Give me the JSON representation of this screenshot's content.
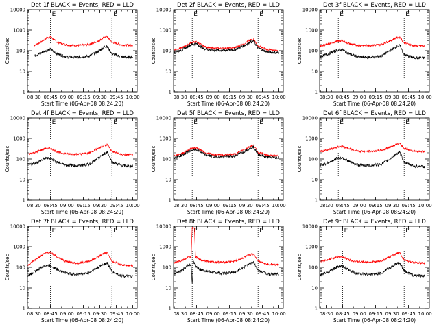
{
  "figure": {
    "xlabel": "Start Time (06-Apr-08 08:24:20)",
    "ylabel": "Counts/sec",
    "xtick_labels": [
      "08:30",
      "08:45",
      "09:00",
      "09:15",
      "09:30",
      "09:45",
      "10:00"
    ],
    "ytick_labels": [
      "1",
      "10",
      "100",
      "1000",
      "10000"
    ],
    "markers": [
      "E",
      "E"
    ],
    "colors": {
      "events": "#000000",
      "lld": "#ff0000",
      "axes": "#000000"
    }
  },
  "chart_data": [
    {
      "type": "line",
      "title": "Det 1f BLACK = Events, RED = LLD",
      "x": [
        "08:30",
        "08:36",
        "08:42",
        "08:45",
        "08:51",
        "09:00",
        "09:10",
        "09:20",
        "09:28",
        "09:34",
        "09:36",
        "09:41",
        "09:50",
        "10:00"
      ],
      "series": [
        {
          "color": "#ff0000",
          "values": [
            180,
            260,
            420,
            460,
            260,
            190,
            180,
            200,
            280,
            440,
            520,
            260,
            190,
            185
          ]
        },
        {
          "color": "#000000",
          "values": [
            55,
            75,
            110,
            115,
            70,
            50,
            48,
            55,
            90,
            150,
            180,
            70,
            50,
            48
          ]
        }
      ],
      "ylim": [
        1,
        10000
      ],
      "yscale": "log",
      "vlines": [
        "08:45",
        "09:41"
      ]
    },
    {
      "type": "line",
      "title": "Det 2f BLACK = Events, RED = LLD",
      "x": [
        "08:24",
        "08:32",
        "08:40",
        "08:45",
        "08:52",
        "09:00",
        "09:10",
        "09:20",
        "09:28",
        "09:34",
        "09:37",
        "09:41",
        "09:50",
        "10:00"
      ],
      "series": [
        {
          "color": "#ff0000",
          "values": [
            110,
            140,
            250,
            270,
            160,
            130,
            130,
            140,
            220,
            330,
            360,
            170,
            110,
            100
          ]
        },
        {
          "color": "#000000",
          "values": [
            85,
            110,
            200,
            215,
            125,
            105,
            105,
            115,
            175,
            270,
            290,
            135,
            85,
            80
          ]
        }
      ],
      "ylim": [
        1,
        10000
      ],
      "yscale": "log",
      "vlines": [
        "08:41",
        "09:41"
      ]
    },
    {
      "type": "line",
      "title": "Det 3f BLACK = Events, RED = LLD",
      "x": [
        "08:24",
        "08:32",
        "08:40",
        "08:45",
        "08:52",
        "09:00",
        "09:10",
        "09:20",
        "09:28",
        "09:34",
        "09:37",
        "09:41",
        "09:50",
        "10:00"
      ],
      "series": [
        {
          "color": "#ff0000",
          "values": [
            170,
            210,
            290,
            300,
            210,
            180,
            180,
            200,
            300,
            420,
            450,
            240,
            175,
            170
          ]
        },
        {
          "color": "#000000",
          "values": [
            50,
            70,
            105,
            110,
            65,
            50,
            48,
            55,
            100,
            160,
            180,
            65,
            45,
            45
          ]
        }
      ],
      "ylim": [
        1,
        10000
      ],
      "yscale": "log",
      "vlines": [
        "08:41",
        "09:41"
      ]
    },
    {
      "type": "line",
      "title": "Det 4f BLACK = Events, RED = LLD",
      "x": [
        "08:24",
        "08:32",
        "08:40",
        "08:45",
        "08:52",
        "09:00",
        "09:10",
        "09:20",
        "09:28",
        "09:34",
        "09:37",
        "09:41",
        "09:50",
        "10:00"
      ],
      "series": [
        {
          "color": "#ff0000",
          "values": [
            170,
            220,
            320,
            330,
            210,
            180,
            170,
            195,
            320,
            450,
            500,
            230,
            165,
            160
          ]
        },
        {
          "color": "#000000",
          "values": [
            50,
            65,
            105,
            110,
            65,
            50,
            48,
            55,
            100,
            180,
            220,
            70,
            48,
            45
          ]
        }
      ],
      "ylim": [
        1,
        10000
      ],
      "yscale": "log",
      "vlines": [
        "08:45",
        "09:41"
      ]
    },
    {
      "type": "line",
      "title": "Det 5f BLACK = Events, RED = LLD",
      "x": [
        "08:24",
        "08:32",
        "08:40",
        "08:45",
        "08:52",
        "09:00",
        "09:10",
        "09:20",
        "09:28",
        "09:34",
        "09:37",
        "09:41",
        "09:50",
        "10:00"
      ],
      "series": [
        {
          "color": "#ff0000",
          "values": [
            140,
            190,
            330,
            350,
            210,
            160,
            155,
            170,
            280,
            420,
            460,
            210,
            150,
            140
          ]
        },
        {
          "color": "#000000",
          "values": [
            115,
            155,
            270,
            285,
            170,
            130,
            128,
            140,
            230,
            350,
            380,
            170,
            120,
            115
          ]
        }
      ],
      "ylim": [
        1,
        10000
      ],
      "yscale": "log",
      "vlines": [
        "08:41",
        "09:41"
      ]
    },
    {
      "type": "line",
      "title": "Det 6f BLACK = Events, RED = LLD",
      "x": [
        "08:24",
        "08:32",
        "08:40",
        "08:45",
        "08:52",
        "09:00",
        "09:10",
        "09:20",
        "09:28",
        "09:34",
        "09:37",
        "09:41",
        "09:50",
        "10:00"
      ],
      "series": [
        {
          "color": "#ff0000",
          "values": [
            230,
            280,
            380,
            400,
            300,
            240,
            235,
            260,
            380,
            520,
            560,
            330,
            240,
            230
          ]
        },
        {
          "color": "#000000",
          "values": [
            48,
            65,
            110,
            115,
            70,
            50,
            48,
            55,
            100,
            175,
            210,
            70,
            45,
            42
          ]
        }
      ],
      "ylim": [
        1,
        10000
      ],
      "yscale": "log",
      "vlines": [
        "08:41",
        "09:41"
      ]
    },
    {
      "type": "line",
      "title": "Det 7f BLACK = Events, RED = LLD",
      "x": [
        "08:24",
        "08:32",
        "08:40",
        "08:45",
        "08:52",
        "09:00",
        "09:10",
        "09:20",
        "09:28",
        "09:34",
        "09:37",
        "09:41",
        "09:50",
        "10:00"
      ],
      "series": [
        {
          "color": "#ff0000",
          "values": [
            120,
            250,
            500,
            540,
            300,
            180,
            160,
            190,
            320,
            480,
            500,
            200,
            130,
            120
          ]
        },
        {
          "color": "#000000",
          "values": [
            35,
            70,
            120,
            125,
            75,
            50,
            45,
            55,
            95,
            150,
            160,
            60,
            38,
            36
          ]
        }
      ],
      "ylim": [
        1,
        10000
      ],
      "yscale": "log",
      "vlines": [
        "08:45",
        "09:41"
      ]
    },
    {
      "type": "line",
      "title": "Det 8f BLACK = Events, RED = LLD",
      "x": [
        "08:24",
        "08:32",
        "08:38",
        "08:40",
        "08:41",
        "08:42",
        "08:43",
        "08:44",
        "08:48",
        "09:00",
        "09:10",
        "09:20",
        "09:28",
        "09:34",
        "09:37",
        "09:41",
        "09:50",
        "10:00"
      ],
      "series": [
        {
          "color": "#ff0000",
          "values": [
            160,
            220,
            330,
            320,
            8500,
            8500,
            8500,
            330,
            230,
            180,
            175,
            200,
            300,
            420,
            450,
            210,
            140,
            135
          ]
        },
        {
          "color": "#000000",
          "values": [
            45,
            70,
            130,
            125,
            15,
            180,
            170,
            120,
            80,
            55,
            50,
            58,
            100,
            160,
            180,
            70,
            48,
            45
          ]
        }
      ],
      "ylim": [
        1,
        10000
      ],
      "yscale": "log",
      "vlines": [
        "08:41",
        "09:41"
      ]
    },
    {
      "type": "line",
      "title": "Det 9f BLACK = Events, RED = LLD",
      "x": [
        "08:24",
        "08:32",
        "08:40",
        "08:45",
        "08:52",
        "09:00",
        "09:10",
        "09:20",
        "09:28",
        "09:34",
        "09:37",
        "09:41",
        "09:50",
        "10:00"
      ],
      "series": [
        {
          "color": "#ff0000",
          "values": [
            190,
            240,
            310,
            320,
            220,
            185,
            180,
            200,
            320,
            460,
            500,
            230,
            165,
            155
          ]
        },
        {
          "color": "#000000",
          "values": [
            40,
            60,
            105,
            110,
            65,
            48,
            45,
            52,
            95,
            150,
            170,
            65,
            40,
            38
          ]
        }
      ],
      "ylim": [
        1,
        10000
      ],
      "yscale": "log",
      "vlines": [
        "08:45",
        "09:41"
      ]
    }
  ]
}
